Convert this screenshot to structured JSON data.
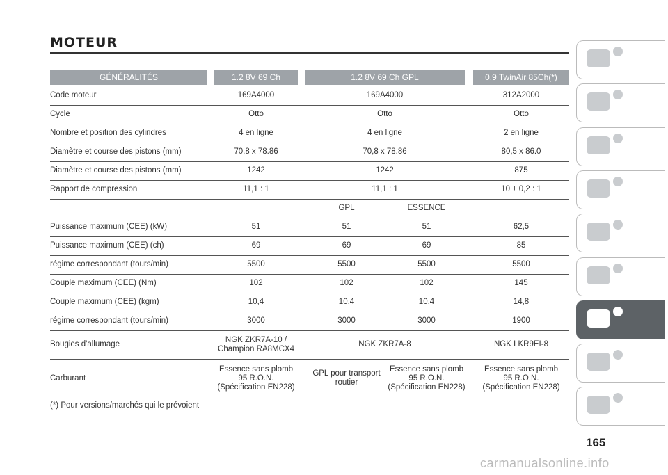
{
  "header": {
    "title": "MOTEUR"
  },
  "table": {
    "columns": [
      "GÉNÉRALITÉS",
      "1.2 8V 69 Ch",
      "1.2 8V 69 Ch GPL",
      "0.9 TwinAir 85Ch(*)"
    ],
    "rows": [
      [
        "Code moteur",
        "169A4000",
        "169A4000",
        "312A2000"
      ],
      [
        "Cycle",
        "Otto",
        "Otto",
        "Otto"
      ],
      [
        "Nombre et position des cylindres",
        "4 en ligne",
        "4 en ligne",
        "2 en ligne"
      ],
      [
        "Diamètre et course des pistons (mm)",
        "70,8 x 78.86",
        "70,8 x 78.86",
        "80,5 x 86.0"
      ],
      [
        "Diamètre et course des pistons (mm)",
        "1242",
        "1242",
        "875"
      ],
      [
        "Rapport de compression",
        "11,1 : 1",
        "11,1 : 1",
        "10 ± 0,2 : 1"
      ],
      [
        "GPL",
        "ESSENCE"
      ],
      [
        "Puissance maximum (CEE) (kW)",
        "51",
        "51",
        "51",
        "62,5"
      ],
      [
        "Puissance maximum (CEE) (ch)",
        "69",
        "69",
        "69",
        "85"
      ],
      [
        "régime correspondant (tours/min)",
        "5500",
        "5500",
        "5500",
        "5500"
      ],
      [
        "Couple maximum (CEE) (Nm)",
        "102",
        "102",
        "102",
        "145"
      ],
      [
        "Couple maximum (CEE) (kgm)",
        "10,4",
        "10,4",
        "10,4",
        "14,8"
      ],
      [
        "régime correspondant (tours/min)",
        "3000",
        "3000",
        "3000",
        "1900"
      ],
      [
        "Bougies d'allumage",
        "NGK ZKR7A-10 /\nChampion RA8MCX4",
        "NGK ZKR7A-8",
        "NGK LKR9EI-8"
      ],
      [
        "Carburant",
        "Essence sans plomb\n95 R.O.N.\n(Spécification EN228)",
        "GPL pour transport\nroutier",
        "Essence sans plomb\n95 R.O.N.\n(Spécification EN228)",
        "Essence sans plomb\n95 R.O.N.\n(Spécification EN228)"
      ]
    ],
    "footnote": "(*) Pour versions/marchés qui le prévoient"
  },
  "page_number": "165",
  "watermark": "carmanualsonline.info"
}
